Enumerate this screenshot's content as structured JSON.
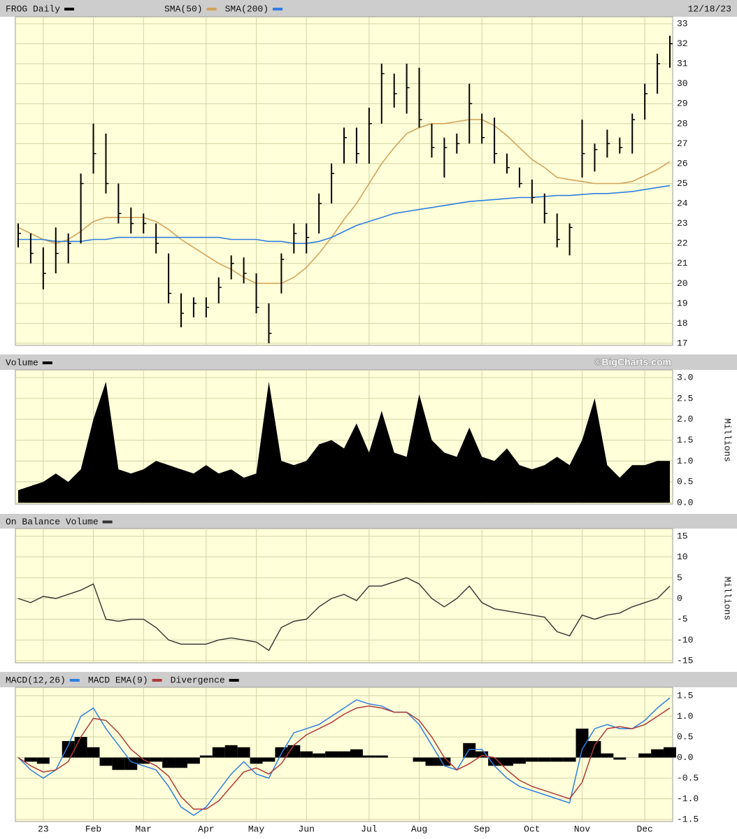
{
  "chart_data": [
    {
      "type": "ohlc",
      "title": "FROG Daily",
      "date": "12/18/23",
      "color": "#000000",
      "high": [
        23,
        22.5,
        21.8,
        22.8,
        22.5,
        25.5,
        28,
        27.5,
        25,
        23.8,
        23.5,
        23,
        21.5,
        19.5,
        19.3,
        19.3,
        20.3,
        21.4,
        21.3,
        20.5,
        19,
        21.5,
        23,
        23,
        24.5,
        26,
        27.8,
        27.8,
        28.8,
        31,
        30.5,
        31,
        30.8,
        28,
        27.3,
        27.5,
        30,
        28.5,
        28.3,
        26.5,
        25.8,
        25.2,
        24.5,
        23.5,
        23,
        28.2,
        27,
        27.7,
        27.3,
        28.5,
        30,
        31.5,
        32.4
      ],
      "low": [
        21.8,
        21,
        19.7,
        20.5,
        21,
        22,
        25.5,
        24.5,
        23,
        22.5,
        22.5,
        21.5,
        19,
        17.8,
        18.3,
        18.3,
        19,
        20.2,
        20,
        18.5,
        17,
        19.5,
        21.5,
        21.5,
        22.5,
        24,
        26,
        26,
        26,
        28,
        28.8,
        28.5,
        27.8,
        26.3,
        25.3,
        26.5,
        27,
        27,
        26,
        25.5,
        24.8,
        24,
        23,
        21.8,
        21.4,
        25.3,
        25.6,
        26.3,
        26.5,
        26.5,
        28.2,
        29.5,
        30.8
      ],
      "close": [
        22.5,
        21.5,
        20.5,
        21.5,
        22,
        25,
        26.5,
        25,
        23.5,
        23,
        23,
        22,
        19.5,
        18.5,
        19,
        18.8,
        19.8,
        21,
        20.5,
        18.8,
        17.5,
        21.2,
        22.5,
        22.3,
        24,
        25.5,
        27.3,
        26.5,
        28,
        30.5,
        29.5,
        29.8,
        28.2,
        26.8,
        26.8,
        27,
        29,
        27.3,
        26.5,
        25.8,
        25,
        24.3,
        23.5,
        22.2,
        22.8,
        26.5,
        26.7,
        27,
        26.8,
        28.2,
        29.5,
        31,
        32
      ],
      "series": [
        {
          "name": "SMA(50)",
          "color": "#d2a45a",
          "values": [
            22.8,
            22.5,
            22.2,
            22,
            22.2,
            22.6,
            23.1,
            23.3,
            23.3,
            23.3,
            23.3,
            23.1,
            22.7,
            22.2,
            21.8,
            21.4,
            21,
            20.7,
            20.3,
            20,
            20,
            20,
            20.3,
            20.8,
            21.5,
            22.3,
            23.2,
            24,
            25,
            26,
            26.8,
            27.5,
            27.8,
            28,
            28,
            28.1,
            28.2,
            28.2,
            27.9,
            27.4,
            26.8,
            26.2,
            25.8,
            25.3,
            25.2,
            25.1,
            25,
            25,
            25,
            25.1,
            25.4,
            25.7,
            26.1
          ]
        },
        {
          "name": "SMA(200)",
          "color": "#2f7fe0",
          "values": [
            22.2,
            22.2,
            22.2,
            22.1,
            22.1,
            22.1,
            22.2,
            22.2,
            22.3,
            22.3,
            22.3,
            22.3,
            22.3,
            22.3,
            22.3,
            22.3,
            22.3,
            22.2,
            22.2,
            22.2,
            22.1,
            22.1,
            22,
            22,
            22.1,
            22.3,
            22.6,
            22.9,
            23.1,
            23.3,
            23.5,
            23.6,
            23.7,
            23.8,
            23.9,
            24,
            24.1,
            24.15,
            24.2,
            24.25,
            24.3,
            24.3,
            24.35,
            24.4,
            24.4,
            24.45,
            24.5,
            24.5,
            24.55,
            24.6,
            24.7,
            24.8,
            24.9
          ]
        }
      ],
      "ylim": [
        17,
        33
      ],
      "yticks": [
        17,
        18,
        19,
        20,
        21,
        22,
        23,
        24,
        25,
        26,
        27,
        28,
        29,
        30,
        31,
        32,
        33
      ],
      "grid": true
    },
    {
      "type": "area",
      "title": "Volume",
      "credit": "©BigCharts.com",
      "color": "#000000",
      "ylabel": "Millions",
      "values": [
        0.3,
        0.4,
        0.5,
        0.7,
        0.5,
        0.8,
        2.0,
        2.9,
        0.8,
        0.7,
        0.8,
        1.0,
        0.9,
        0.8,
        0.7,
        0.9,
        0.7,
        0.8,
        0.6,
        0.7,
        2.9,
        1.0,
        0.9,
        1.0,
        1.4,
        1.5,
        1.3,
        1.9,
        1.2,
        2.2,
        1.2,
        1.1,
        2.6,
        1.5,
        1.2,
        1.1,
        1.8,
        1.1,
        1.0,
        1.3,
        0.9,
        0.8,
        0.9,
        1.1,
        0.9,
        1.5,
        2.5,
        0.9,
        0.6,
        0.9,
        0.9,
        1.0,
        1.0
      ],
      "ylim": [
        0,
        3
      ],
      "yticks": [
        {
          "value": 0,
          "label": "0.0"
        },
        0.5,
        {
          "value": 1,
          "label": "1.0"
        },
        1.5,
        {
          "value": 2,
          "label": "2.0"
        },
        2.5,
        {
          "value": 3,
          "label": "3.0"
        }
      ],
      "grid": true
    },
    {
      "type": "line",
      "title": "On Balance Volume",
      "color": "#333333",
      "ylabel": "Millions",
      "values": [
        0,
        -1,
        0.5,
        0,
        1,
        2,
        3.5,
        -5,
        -5.5,
        -5,
        -5,
        -7,
        -10,
        -11,
        -11,
        -11,
        -10,
        -9.5,
        -10,
        -10.5,
        -12.5,
        -7,
        -5.5,
        -5,
        -2,
        0,
        1,
        -0.5,
        3,
        3,
        4,
        5,
        3.5,
        0,
        -2,
        0,
        3,
        -1,
        -2.5,
        -3,
        -3.5,
        -4,
        -4.5,
        -8,
        -9,
        -4,
        -5,
        -4,
        -3.5,
        -2,
        -1,
        0,
        3
      ],
      "ylim": [
        -15,
        15
      ],
      "yticks": [
        -15,
        -10,
        -5,
        0,
        5,
        10,
        15
      ],
      "grid": true
    },
    {
      "type": "macd",
      "categories": [
        null,
        null,
        "23",
        null,
        null,
        null,
        "Feb",
        null,
        null,
        null,
        "Mar",
        null,
        null,
        null,
        null,
        "Apr",
        null,
        null,
        null,
        "May",
        null,
        null,
        null,
        "Jun",
        null,
        null,
        null,
        null,
        "Jul",
        null,
        null,
        null,
        "Aug",
        null,
        null,
        null,
        null,
        "Sep",
        null,
        null,
        null,
        "Oct",
        null,
        null,
        null,
        "Nov",
        null,
        null,
        null,
        null,
        "Dec",
        null,
        null
      ],
      "series": [
        {
          "name": "MACD(12,26)",
          "color": "#2f7fe0",
          "type": "line",
          "values": [
            0,
            -0.3,
            -0.5,
            -0.3,
            0.3,
            1.0,
            1.2,
            0.7,
            0.3,
            -0.1,
            -0.2,
            -0.3,
            -0.7,
            -1.2,
            -1.4,
            -1.2,
            -0.8,
            -0.4,
            -0.1,
            -0.4,
            -0.5,
            0.1,
            0.6,
            0.7,
            0.8,
            1.0,
            1.2,
            1.4,
            1.3,
            1.25,
            1.1,
            1.1,
            0.8,
            0.3,
            -0.2,
            -0.3,
            0.2,
            0.2,
            -0.2,
            -0.5,
            -0.7,
            -0.8,
            -0.9,
            -1.0,
            -1.1,
            0.2,
            0.7,
            0.8,
            0.7,
            0.7,
            0.9,
            1.2,
            1.45
          ]
        },
        {
          "name": "MACD EMA(9)",
          "color": "#b03a3a",
          "type": "line",
          "values": [
            0,
            -0.2,
            -0.35,
            -0.3,
            -0.1,
            0.5,
            0.95,
            0.9,
            0.6,
            0.2,
            -0.05,
            -0.2,
            -0.45,
            -0.95,
            -1.25,
            -1.25,
            -1.05,
            -0.7,
            -0.35,
            -0.25,
            -0.4,
            -0.15,
            0.3,
            0.55,
            0.7,
            0.85,
            1.05,
            1.2,
            1.25,
            1.2,
            1.1,
            1.1,
            0.9,
            0.5,
            0,
            -0.3,
            -0.15,
            0.05,
            0,
            -0.3,
            -0.55,
            -0.7,
            -0.8,
            -0.9,
            -1.0,
            -0.6,
            0.3,
            0.7,
            0.75,
            0.7,
            0.8,
            1.0,
            1.2
          ]
        },
        {
          "name": "Divergence",
          "color": "#000000",
          "type": "bar",
          "values": [
            0,
            -0.1,
            -0.15,
            0,
            0.4,
            0.5,
            0.25,
            -0.2,
            -0.3,
            -0.3,
            -0.15,
            -0.1,
            -0.25,
            -0.25,
            -0.15,
            0.05,
            0.25,
            0.3,
            0.25,
            -0.15,
            -0.1,
            0.25,
            0.3,
            0.15,
            0.1,
            0.15,
            0.15,
            0.2,
            0.05,
            0.05,
            0,
            0,
            -0.1,
            -0.2,
            -0.2,
            0,
            0.35,
            0.15,
            -0.2,
            -0.2,
            -0.15,
            -0.1,
            -0.1,
            -0.1,
            -0.1,
            0.7,
            0.4,
            0.1,
            -0.05,
            0,
            0.1,
            0.2,
            0.25
          ]
        }
      ],
      "ylim": [
        -1.5,
        1.5
      ],
      "yticks": [
        -1.5,
        {
          "value": -1,
          "label": "-1.0"
        },
        -0.5,
        {
          "value": 0,
          "label": "0.0"
        },
        0.5,
        {
          "value": 1,
          "label": "1.0"
        },
        1.5
      ],
      "grid": true
    }
  ]
}
